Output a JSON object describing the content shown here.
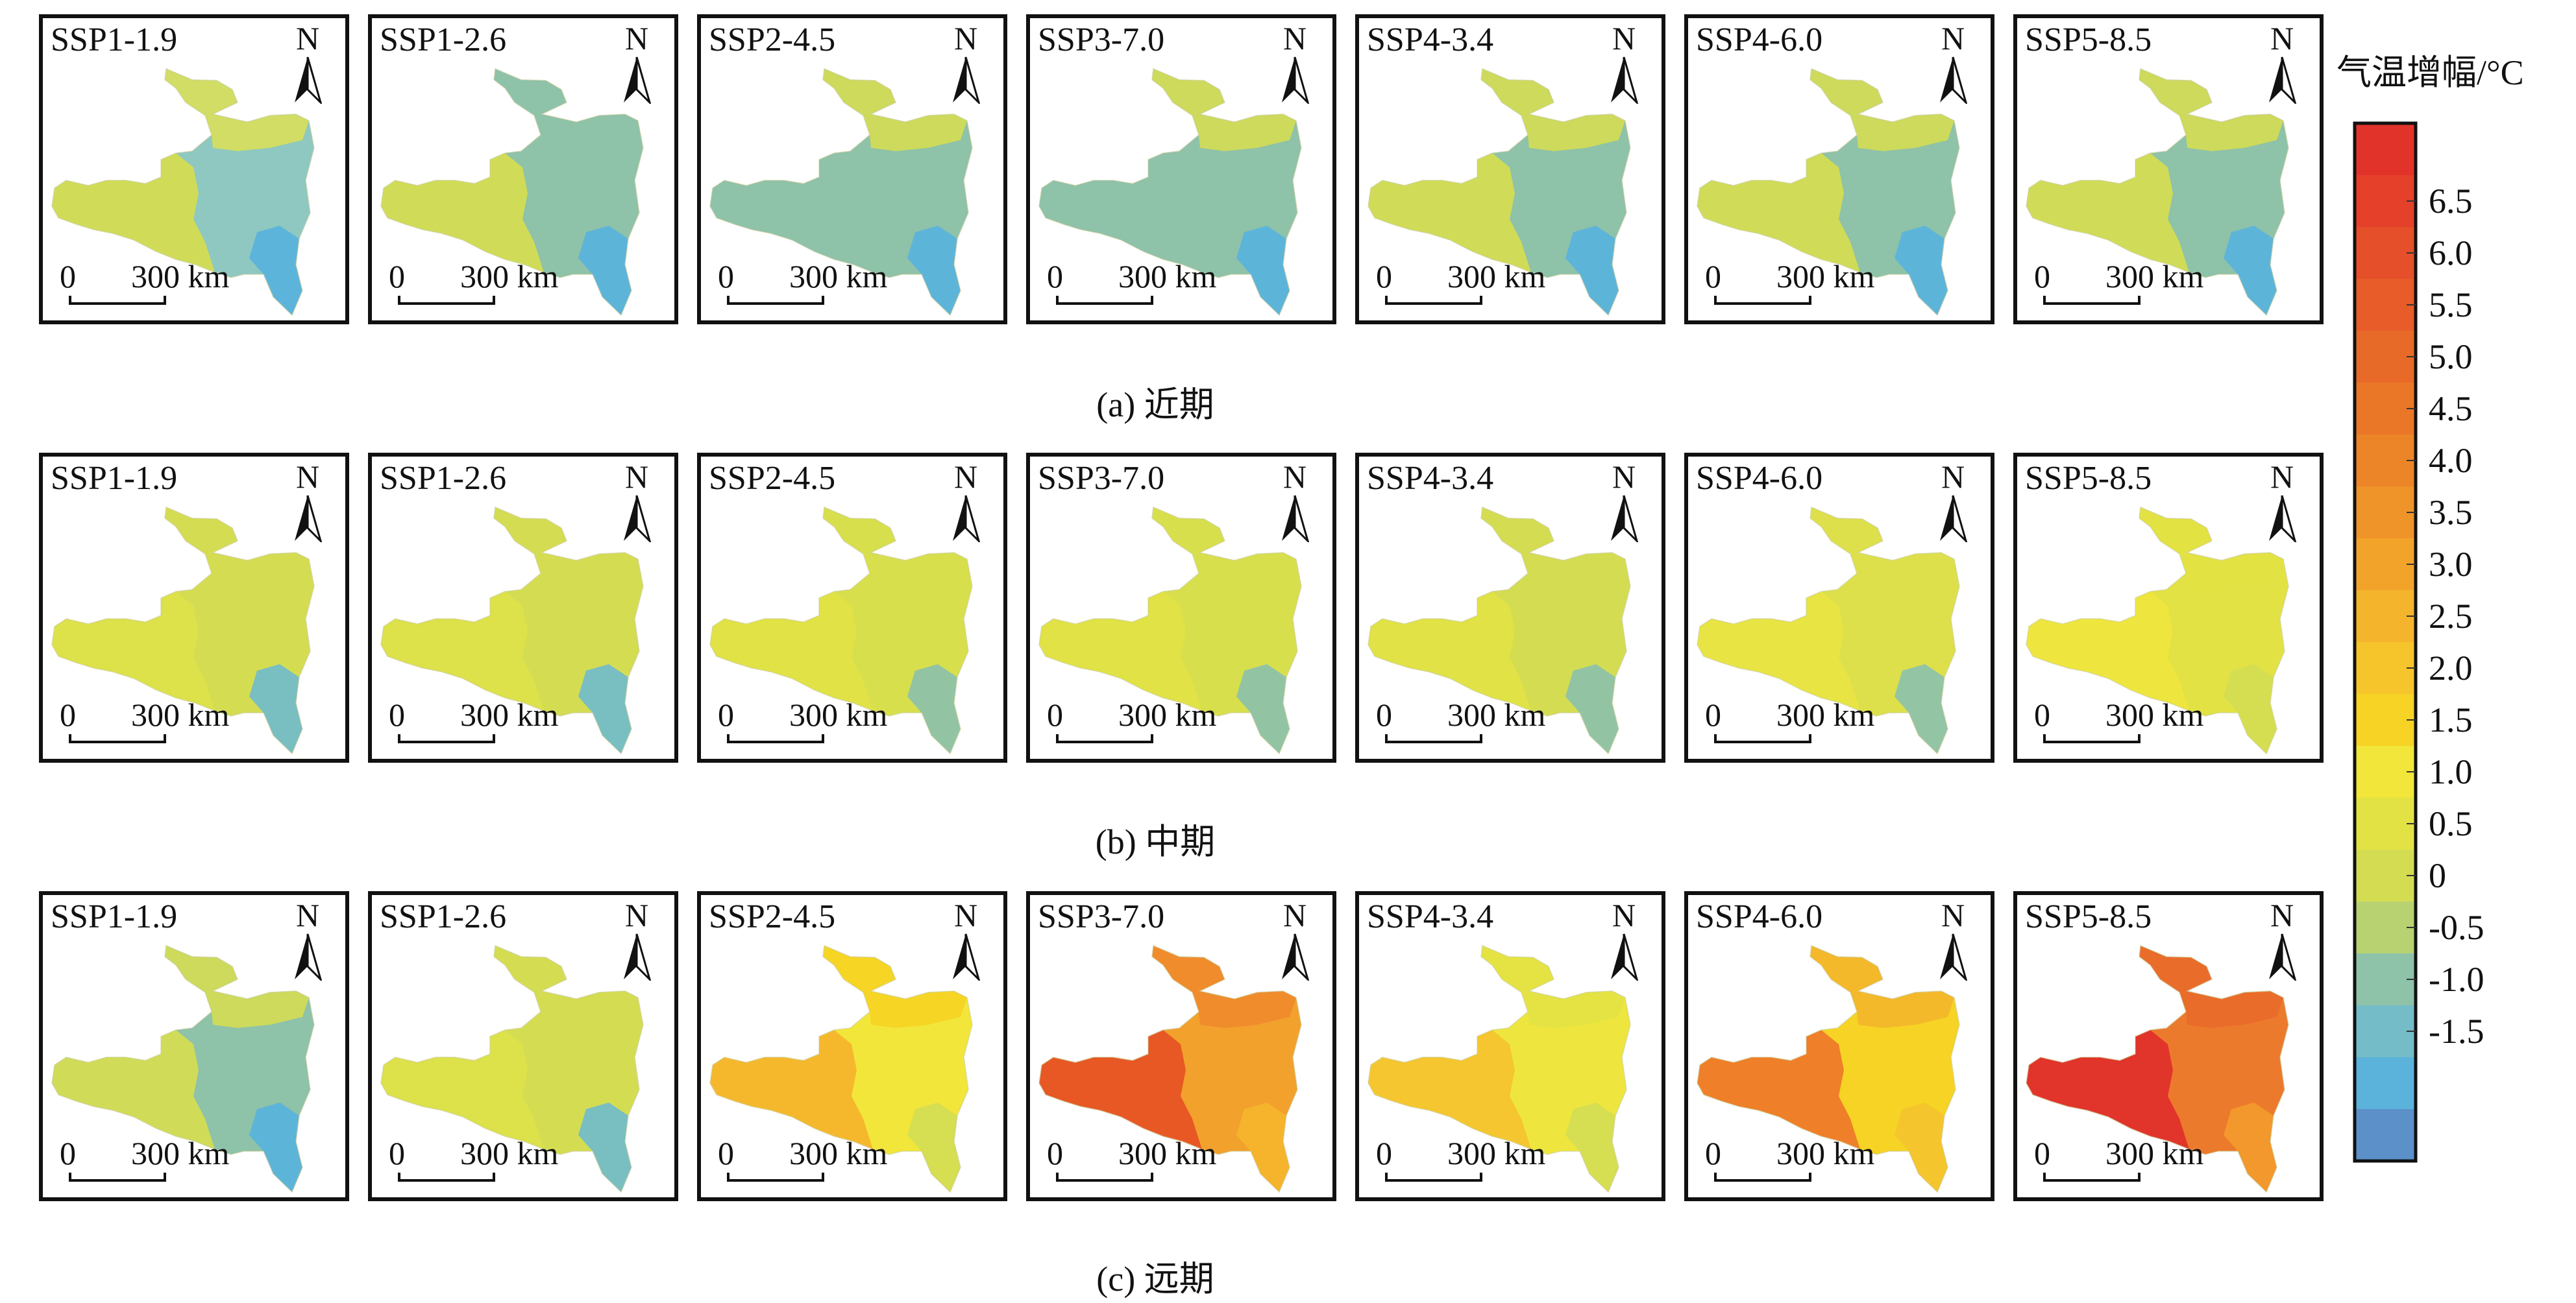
{
  "rows": [
    {
      "caption": "(a) 近期",
      "panels": [
        {
          "scenario": "SSP1-1.9",
          "palette": {
            "west": "#d4dd52",
            "north": "#d8df5a",
            "main": "#8ec8c0",
            "south": "#5bb3db"
          }
        },
        {
          "scenario": "SSP1-2.6",
          "palette": {
            "west": "#d4dd52",
            "north": "#8ec2a9",
            "main": "#8ec2a9",
            "south": "#5bb3db"
          }
        },
        {
          "scenario": "SSP2-4.5",
          "palette": {
            "west": "#8ec2a9",
            "north": "#d4dd52",
            "main": "#8ec2a9",
            "south": "#5bb3db"
          }
        },
        {
          "scenario": "SSP3-7.0",
          "palette": {
            "west": "#8ec2a9",
            "north": "#d4dd52",
            "main": "#8ec2a9",
            "south": "#5bb3db"
          }
        },
        {
          "scenario": "SSP4-3.4",
          "palette": {
            "west": "#d4dd52",
            "north": "#d4dd52",
            "main": "#8ec2a9",
            "south": "#5bb3db"
          }
        },
        {
          "scenario": "SSP4-6.0",
          "palette": {
            "west": "#d4dd52",
            "north": "#d4dd52",
            "main": "#8ec2a9",
            "south": "#5bb3db"
          }
        },
        {
          "scenario": "SSP5-8.5",
          "palette": {
            "west": "#d4dd52",
            "north": "#d4dd52",
            "main": "#8ec2a9",
            "south": "#5bb3db"
          }
        }
      ]
    },
    {
      "caption": "(b) 中期",
      "panels": [
        {
          "scenario": "SSP1-1.9",
          "palette": {
            "west": "#dde04a",
            "north": "#d4dd52",
            "main": "#d4dd52",
            "south": "#74bcc7"
          }
        },
        {
          "scenario": "SSP1-2.6",
          "palette": {
            "west": "#dde04a",
            "north": "#d4dd52",
            "main": "#d4dd52",
            "south": "#74bcc7"
          }
        },
        {
          "scenario": "SSP2-4.5",
          "palette": {
            "west": "#e2e244",
            "north": "#d8df4c",
            "main": "#d8df4c",
            "south": "#8ec2a9"
          }
        },
        {
          "scenario": "SSP3-7.0",
          "palette": {
            "west": "#e2e244",
            "north": "#d8df4c",
            "main": "#d8df4c",
            "south": "#8ec2a9"
          }
        },
        {
          "scenario": "SSP4-3.4",
          "palette": {
            "west": "#e2e244",
            "north": "#d4dd52",
            "main": "#d4dd52",
            "south": "#8ec2a9"
          }
        },
        {
          "scenario": "SSP4-6.0",
          "palette": {
            "west": "#e8e443",
            "north": "#dde04a",
            "main": "#dde04a",
            "south": "#8ec2a9"
          }
        },
        {
          "scenario": "SSP5-8.5",
          "palette": {
            "west": "#eee63e",
            "north": "#e2e244",
            "main": "#e2e244",
            "south": "#d4dd52"
          }
        }
      ]
    },
    {
      "caption": "(c) 远期",
      "panels": [
        {
          "scenario": "SSP1-1.9",
          "palette": {
            "west": "#d4dd52",
            "north": "#d4dd52",
            "main": "#8ec2a9",
            "south": "#5bb3db"
          }
        },
        {
          "scenario": "SSP1-2.6",
          "palette": {
            "west": "#dde04a",
            "north": "#d4dd52",
            "main": "#d4dd52",
            "south": "#74bcc7"
          }
        },
        {
          "scenario": "SSP2-4.5",
          "palette": {
            "west": "#f4b52c",
            "north": "#f6d324",
            "main": "#f2e63a",
            "south": "#d4dd52"
          }
        },
        {
          "scenario": "SSP3-7.0",
          "palette": {
            "west": "#e65424",
            "north": "#ef8a2c",
            "main": "#f2a12c",
            "south": "#f4b52c"
          }
        },
        {
          "scenario": "SSP4-3.4",
          "palette": {
            "west": "#f4c42e",
            "north": "#e2e244",
            "main": "#eee63e",
            "south": "#d4dd52"
          }
        },
        {
          "scenario": "SSP4-6.0",
          "palette": {
            "west": "#ee7a2a",
            "north": "#f4b52c",
            "main": "#f6d324",
            "south": "#f4c42e"
          }
        },
        {
          "scenario": "SSP5-8.5",
          "palette": {
            "west": "#e0302a",
            "north": "#e96a2a",
            "main": "#ec7a2c",
            "south": "#f29a2c"
          }
        }
      ]
    }
  ],
  "north_label": "N",
  "scale": {
    "zero": "0",
    "distance": "300 km"
  },
  "legend": {
    "title": "气温增幅/°C",
    "tick_labels": [
      "6.5",
      "6.0",
      "5.5",
      "5.0",
      "4.5",
      "4.0",
      "3.5",
      "3.0",
      "2.5",
      "2.0",
      "1.5",
      "1.0",
      "0.5",
      "0",
      "-0.5",
      "-1.0",
      "-1.5"
    ],
    "colors": [
      "#e2332b",
      "#e4402a",
      "#e54f29",
      "#e75c28",
      "#e86a28",
      "#ea7727",
      "#ec8527",
      "#ef9428",
      "#f2a42a",
      "#f4b52c",
      "#f6c52c",
      "#f6d324",
      "#f2e63a",
      "#e2e244",
      "#d4dd52",
      "#b8d272",
      "#8ec2a9",
      "#74bcc7",
      "#5bb3db",
      "#5c90c9"
    ]
  }
}
